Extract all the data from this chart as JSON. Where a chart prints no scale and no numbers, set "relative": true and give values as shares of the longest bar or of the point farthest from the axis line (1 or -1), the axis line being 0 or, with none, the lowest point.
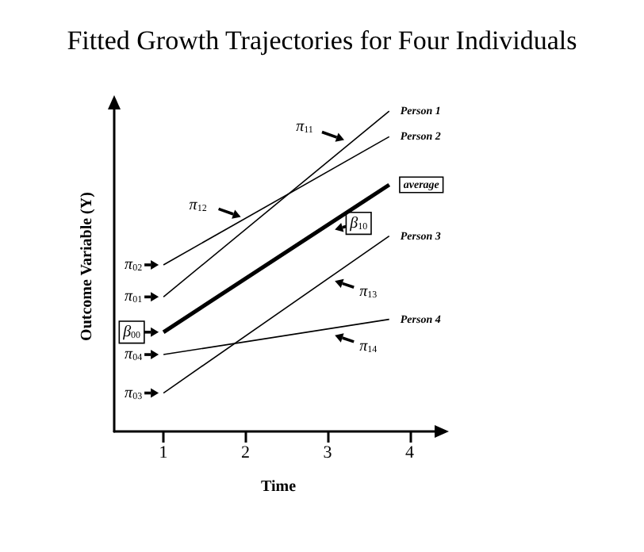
{
  "chart_data": {
    "type": "line",
    "title": "Fitted Growth Trajectories for Four Individuals",
    "xlabel": "Time",
    "ylabel": "Outcome Variable (Y)",
    "relative": true,
    "x": [
      1,
      3.75
    ],
    "xlim": [
      0.4,
      4.4
    ],
    "xticks": [
      1,
      2,
      3,
      4
    ],
    "grid": false,
    "legend": false,
    "marker": "none",
    "line_style": "solid",
    "series": [
      {
        "name": "Person 1",
        "color": "#000000",
        "values": [
          0.42,
          1
        ]
      },
      {
        "name": "Person 2",
        "color": "#000000",
        "values": [
          0.52,
          0.92
        ]
      },
      {
        "name": "average",
        "color": "#000000",
        "values": [
          0.31,
          0.77
        ]
      },
      {
        "name": "Person 3",
        "color": "#000000",
        "values": [
          0.12,
          0.61
        ]
      },
      {
        "name": "Person 4",
        "color": "#000000",
        "values": [
          0.24,
          0.35
        ]
      }
    ],
    "annotations": [
      {
        "text": "π$_{02}$",
        "x": 1,
        "y": 0.52
      },
      {
        "text": "π$_{01}$",
        "x": 1,
        "y": 0.42
      },
      {
        "text": "β$_{00}$",
        "x": 1,
        "y": 0.31
      },
      {
        "text": "π$_{04}$",
        "x": 1,
        "y": 0.24
      },
      {
        "text": "π$_{03}$",
        "x": 1,
        "y": 0.12
      },
      {
        "text": "π$_{11}$",
        "x": 3.26,
        "y": 0.91
      },
      {
        "text": "π$_{12}$",
        "x": 2,
        "y": 0.67
      },
      {
        "text": "β$_{10}$",
        "x": 3.03,
        "y": 0.63
      },
      {
        "text": "π$_{13}$",
        "x": 3.03,
        "y": 0.47
      },
      {
        "text": "π$_{14}$",
        "x": 3.03,
        "y": 0.3
      }
    ]
  }
}
